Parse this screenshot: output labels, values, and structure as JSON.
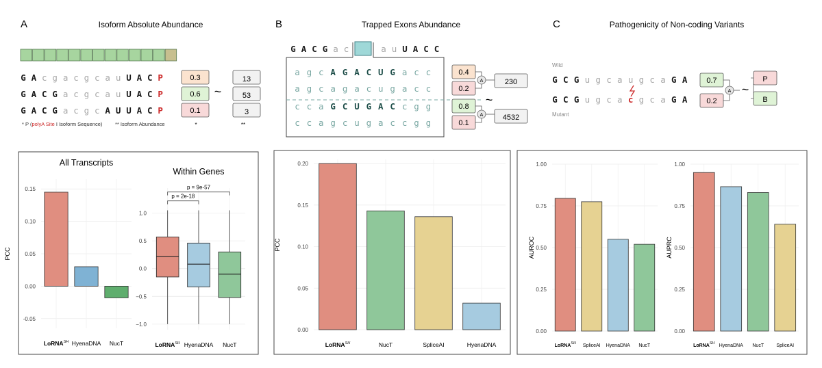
{
  "panels": [
    {
      "letter": "A",
      "title": "Isoform Absolute Abundance"
    },
    {
      "letter": "B",
      "title": "Trapped Exons Abundance"
    },
    {
      "letter": "C",
      "title": "Pathogenicity of Non-coding Variants"
    }
  ],
  "colors": {
    "lorna": "#e08e80",
    "hyena": "#a6cbe0",
    "nuct": "#8fc79a",
    "splice": "#e6d292",
    "nuct_dark": "#5fae6e",
    "hyena_dark": "#7fb2d4",
    "box_peach": "#fbe3cf",
    "box_green": "#dff3d6",
    "box_pink": "#f8d9d9",
    "box_teal": "#9fd8d8",
    "seq_upper": "#1a1a1a",
    "seq_lower_grey": "#a8a8a8",
    "seq_lower_teal": "#7aa8a3",
    "p_red": "#cc2a2a"
  },
  "panelA": {
    "seq_rows": [
      {
        "upper_prefix": "GA",
        "lower": "cgacgcau",
        "upper_suffix": "UAC",
        "p": "P",
        "score": "0.3",
        "score_color": "box_peach",
        "abundance": "13"
      },
      {
        "upper_prefix": "GACG",
        "lower": "acgcau",
        "upper_suffix": "UAC",
        "p": "P",
        "score": "0.6",
        "score_color": "box_green",
        "abundance": "53"
      },
      {
        "upper_prefix": "GACG",
        "lower": "acgc",
        "upper_suffix": "AUUAC",
        "p": "P",
        "score": "0.1",
        "score_color": "box_pink",
        "abundance": "3"
      }
    ],
    "tilde": "~",
    "footnote_1_prefix": "* P (",
    "footnote_1_red": "polyA Site",
    "footnote_1_suffix": " I Isoform Sequence)",
    "footnote_2": "** Isoform Abundance",
    "star_1": "*",
    "star_2": "**"
  },
  "panelB": {
    "header_left": "GACG",
    "header_left_lower": "ac",
    "header_right_lower": "au",
    "header_right": "UACC",
    "rows": [
      {
        "text": "agcAGACUGacc",
        "score": "0.4",
        "score_color": "box_peach"
      },
      {
        "text": "agcagacugacc",
        "score": "0.2",
        "score_color": "box_pink"
      },
      {
        "text": "ccaGCUGACcgg",
        "score": "0.8",
        "score_color": "box_green"
      },
      {
        "text": "ccagcugaccgg",
        "score": "0.1",
        "score_color": "box_pink"
      }
    ],
    "abundance_1": "230",
    "abundance_2": "4532",
    "tilde": "~",
    "sum_symbol": "A"
  },
  "panelC": {
    "wild_label": "Wild",
    "mutant_label": "Mutant",
    "wild_seq": "GCGugcaugcaGA",
    "mutant_seq": "GCGugcacgcaGA",
    "wild_score": "0.7",
    "mutant_score": "0.2",
    "tilde": "~",
    "label_p": "P",
    "label_b": "B",
    "sum_symbol": "A"
  },
  "chart_data": [
    {
      "id": "A_all_transcripts",
      "type": "bar",
      "title": "All Transcripts",
      "ylabel": "PCC",
      "categories": [
        "LoRNA",
        "HyenaDNA",
        "NucT"
      ],
      "category_sup": [
        "SH",
        "",
        ""
      ],
      "values": [
        0.145,
        0.03,
        -0.018
      ],
      "colors": [
        "lorna",
        "hyena_dark",
        "nuct_dark"
      ],
      "ylim": [
        -0.065,
        0.165
      ],
      "yticks": [
        -0.05,
        0.0,
        0.05,
        0.1,
        0.15
      ],
      "ytick_labels": [
        "-0.05",
        "0.00",
        "0.05",
        "0.10",
        "0.15"
      ]
    },
    {
      "id": "A_within_genes",
      "type": "box",
      "title": "Within Genes",
      "categories": [
        "LoRNA",
        "HyenaDNA",
        "NucT"
      ],
      "category_sup": [
        "SH",
        "",
        ""
      ],
      "boxes": [
        {
          "q1": -0.15,
          "median": 0.22,
          "q3": 0.57,
          "whisker_low": -1.0,
          "whisker_high": 1.05
        },
        {
          "q1": -0.33,
          "median": 0.08,
          "q3": 0.46,
          "whisker_low": -1.0,
          "whisker_high": 1.05
        },
        {
          "q1": -0.52,
          "median": -0.1,
          "q3": 0.3,
          "whisker_low": -1.0,
          "whisker_high": 1.05
        }
      ],
      "colors": [
        "lorna",
        "hyena",
        "nuct"
      ],
      "ylim": [
        -1.1,
        1.45
      ],
      "yticks": [
        -1.0,
        -0.5,
        0.0,
        0.5,
        1.0
      ],
      "ytick_labels": [
        "−1.0",
        "−0.5",
        "0.0",
        "0.5",
        "1.0"
      ],
      "annotations": [
        {
          "label": "p = 2e-18",
          "from": 0,
          "to": 1,
          "level": 1.22
        },
        {
          "label": "p = 9e-57",
          "from": 0,
          "to": 2,
          "level": 1.38
        }
      ]
    },
    {
      "id": "B_trapped_exons",
      "type": "bar",
      "ylabel": "PCC",
      "categories": [
        "LoRNA",
        "NucT",
        "SpliceAI",
        "HyenaDNA"
      ],
      "category_sup": [
        "SH",
        "",
        "",
        ""
      ],
      "values": [
        0.2,
        0.143,
        0.136,
        0.032
      ],
      "colors": [
        "lorna",
        "nuct",
        "splice",
        "hyena"
      ],
      "ylim": [
        0.0,
        0.205
      ],
      "yticks": [
        0.0,
        0.05,
        0.1,
        0.15,
        0.2
      ],
      "ytick_labels": [
        "0.00",
        "0.05",
        "0.10",
        "0.15",
        "0.20"
      ]
    },
    {
      "id": "C_auroc",
      "type": "bar",
      "ylabel": "AUROC",
      "categories": [
        "LoRNA",
        "SpliceAI",
        "HyenaDNA",
        "NucT"
      ],
      "category_sup": [
        "SH",
        "",
        "",
        ""
      ],
      "values": [
        0.795,
        0.775,
        0.55,
        0.52
      ],
      "colors": [
        "lorna",
        "splice",
        "hyena",
        "nuct"
      ],
      "ylim": [
        0.0,
        1.0
      ],
      "yticks": [
        0.0,
        0.25,
        0.5,
        0.75,
        1.0
      ],
      "ytick_labels": [
        "0.00",
        "0.25",
        "0.50",
        "0.75",
        "1.00"
      ]
    },
    {
      "id": "C_auprc",
      "type": "bar",
      "ylabel": "AUPRC",
      "categories": [
        "LoRNA",
        "HyenaDNA",
        "NucT",
        "SpliceAI"
      ],
      "category_sup": [
        "SH",
        "",
        "",
        ""
      ],
      "values": [
        0.95,
        0.865,
        0.83,
        0.64
      ],
      "colors": [
        "lorna",
        "hyena",
        "nuct",
        "splice"
      ],
      "ylim": [
        0.0,
        1.0
      ],
      "yticks": [
        0.0,
        0.25,
        0.5,
        0.75,
        1.0
      ],
      "ytick_labels": [
        "0.00",
        "0.25",
        "0.50",
        "0.75",
        "1.00"
      ]
    }
  ]
}
